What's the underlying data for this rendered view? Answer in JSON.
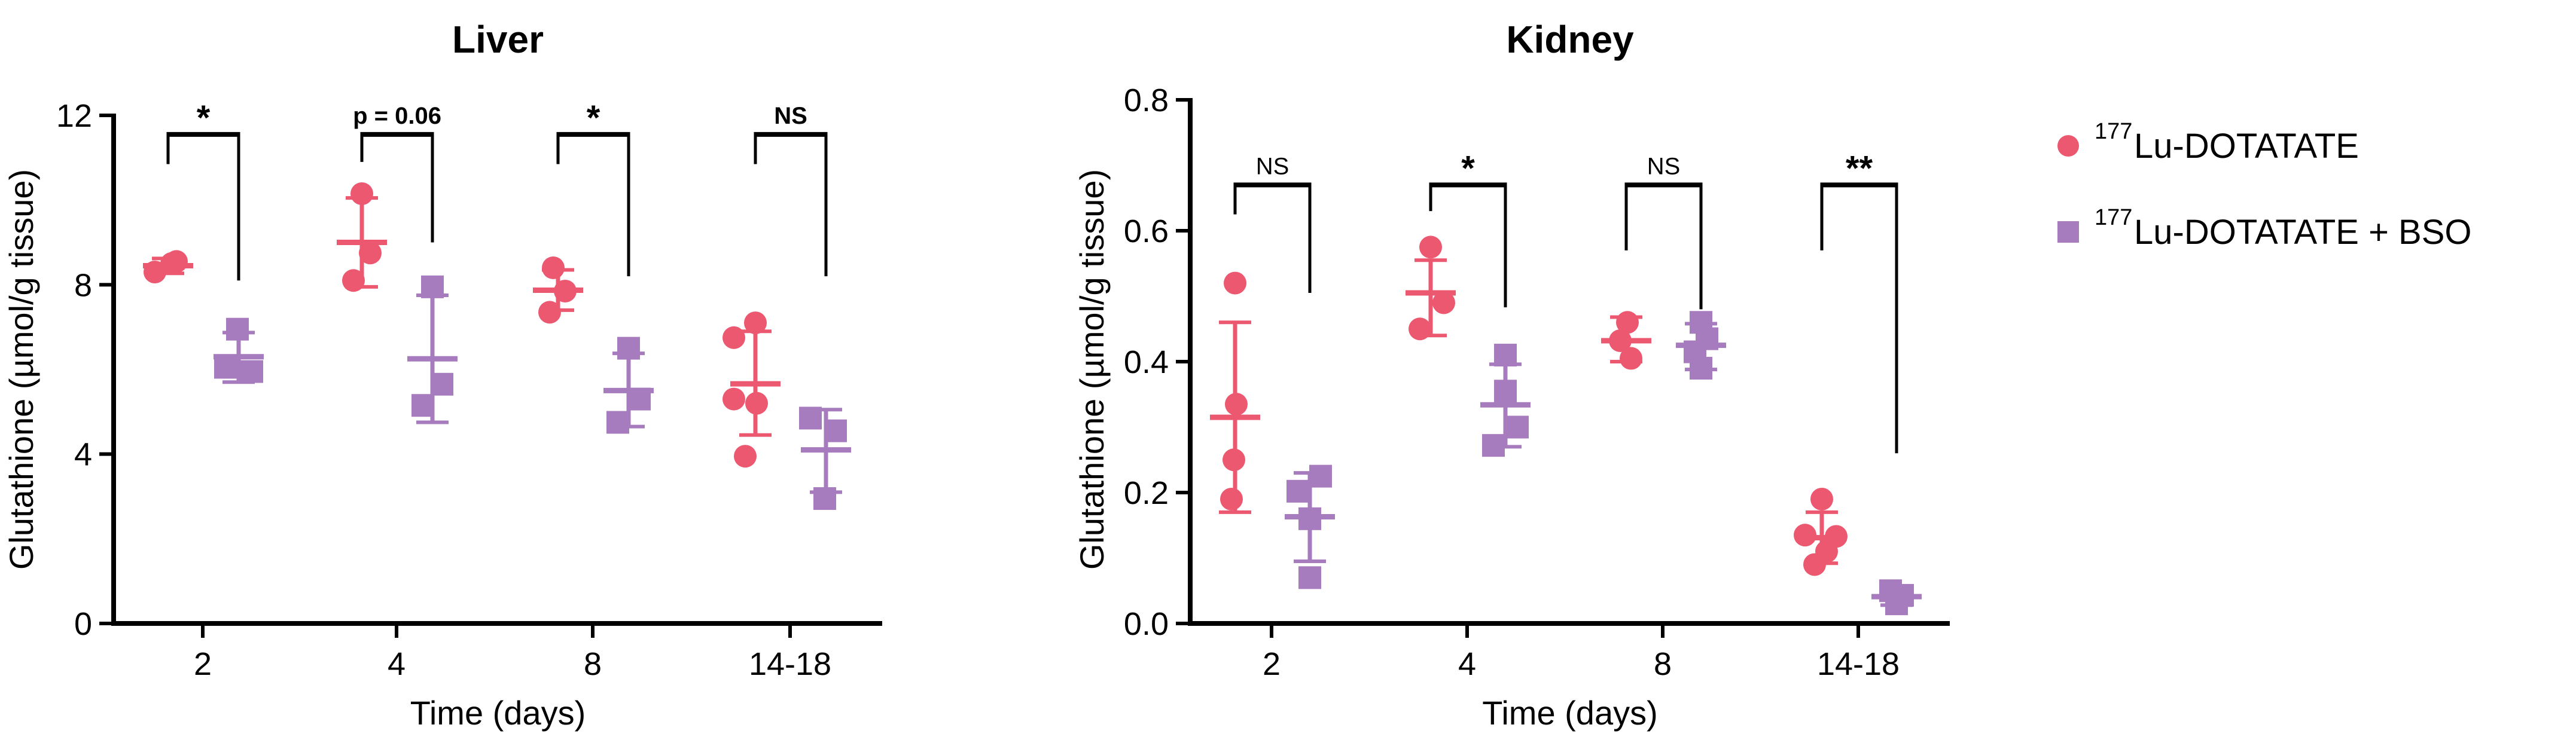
{
  "figure": {
    "background": "#ffffff",
    "text_color": "#000000"
  },
  "legend": {
    "position": "right",
    "items": [
      {
        "marker": "circle",
        "color": "#EC5870",
        "isotope_sup": "177",
        "label": "Lu-DOTATATE"
      },
      {
        "marker": "square",
        "color": "#A77CBE",
        "isotope_sup": "177",
        "label": "Lu-DOTATATE + BSO"
      }
    ]
  },
  "chart_data": [
    {
      "type": "scatter",
      "title": "Liver",
      "xlabel": "Time (days)",
      "ylabel": "Glutathione (µmol/g tissue)",
      "categories": [
        "2",
        "4",
        "8",
        "14-18"
      ],
      "ylim": [
        0,
        12
      ],
      "yticks": [
        0,
        4,
        8,
        12
      ],
      "ytick_labels": [
        "0",
        "4",
        "8",
        "12"
      ],
      "grid": false,
      "series": [
        {
          "name": "177Lu-DOTATATE",
          "marker": "circle",
          "color": "#EC5870",
          "groups": [
            {
              "points": [
                {
                  "dx": -22,
                  "v": 8.3
                },
                {
                  "dx": 6,
                  "v": 8.5
                },
                {
                  "dx": 14,
                  "v": 8.55
                }
              ],
              "mean": 8.45,
              "sd_hi": 8.62,
              "sd_lo": 8.27
            },
            {
              "points": [
                {
                  "dx": 0,
                  "v": 10.15
                },
                {
                  "dx": 14,
                  "v": 8.75
                },
                {
                  "dx": -14,
                  "v": 8.1
                }
              ],
              "mean": 9.0,
              "sd_hi": 10.05,
              "sd_lo": 7.95
            },
            {
              "points": [
                {
                  "dx": -8,
                  "v": 8.4
                },
                {
                  "dx": 12,
                  "v": 7.85
                },
                {
                  "dx": -14,
                  "v": 7.35
                }
              ],
              "mean": 7.87,
              "sd_hi": 8.35,
              "sd_lo": 7.4
            },
            {
              "points": [
                {
                  "dx": 0,
                  "v": 7.1
                },
                {
                  "dx": -36,
                  "v": 6.75
                },
                {
                  "dx": -36,
                  "v": 5.3
                },
                {
                  "dx": 2,
                  "v": 5.2
                },
                {
                  "dx": -17,
                  "v": 3.95
                }
              ],
              "mean": 5.66,
              "sd_hi": 6.9,
              "sd_lo": 4.45
            }
          ]
        },
        {
          "name": "177Lu-DOTATATE + BSO",
          "marker": "square",
          "color": "#A77CBE",
          "groups": [
            {
              "points": [
                {
                  "dx": -2,
                  "v": 6.95
                },
                {
                  "dx": -22,
                  "v": 6.05
                },
                {
                  "dx": 22,
                  "v": 5.95
                }
              ],
              "mean": 6.3,
              "sd_hi": 6.87,
              "sd_lo": 5.7
            },
            {
              "points": [
                {
                  "dx": 0,
                  "v": 7.95
                },
                {
                  "dx": 16,
                  "v": 5.65
                },
                {
                  "dx": -16,
                  "v": 5.15
                }
              ],
              "mean": 6.25,
              "sd_hi": 7.75,
              "sd_lo": 4.75
            },
            {
              "points": [
                {
                  "dx": 0,
                  "v": 6.5
                },
                {
                  "dx": 18,
                  "v": 5.3
                },
                {
                  "dx": -18,
                  "v": 4.75
                }
              ],
              "mean": 5.5,
              "sd_hi": 6.38,
              "sd_lo": 4.65
            },
            {
              "points": [
                {
                  "dx": -26,
                  "v": 4.85
                },
                {
                  "dx": 16,
                  "v": 4.55
                },
                {
                  "dx": -2,
                  "v": 2.95
                }
              ],
              "mean": 4.1,
              "sd_hi": 5.05,
              "sd_lo": 3.1
            }
          ]
        }
      ],
      "annotations": [
        {
          "category_index": 0,
          "label": "*",
          "bold": true,
          "bar": 11.55,
          "left_end": 10.85,
          "right_end": 8.1
        },
        {
          "category_index": 1,
          "label": "p = 0.06",
          "bold": true,
          "bar": 11.55,
          "left_end": 10.9,
          "right_end": 9.0
        },
        {
          "category_index": 2,
          "label": "*",
          "bold": true,
          "bar": 11.55,
          "left_end": 10.85,
          "right_end": 8.2
        },
        {
          "category_index": 3,
          "label": "NS",
          "bold": true,
          "bar": 11.55,
          "left_end": 10.85,
          "right_end": 8.2
        }
      ]
    },
    {
      "type": "scatter",
      "title": "Kidney",
      "xlabel": "Time (days)",
      "ylabel": "Glutathione (µmol/g tissue)",
      "categories": [
        "2",
        "4",
        "8",
        "14-18"
      ],
      "ylim": [
        0,
        0.8
      ],
      "yticks": [
        0,
        0.2,
        0.4,
        0.6,
        0.8
      ],
      "ytick_labels": [
        "0.0",
        "0.2",
        "0.4",
        "0.6",
        "0.8"
      ],
      "grid": false,
      "series": [
        {
          "name": "177Lu-DOTATATE",
          "marker": "circle",
          "color": "#EC5870",
          "groups": [
            {
              "points": [
                {
                  "dx": 0,
                  "v": 0.52
                },
                {
                  "dx": 2,
                  "v": 0.335
                },
                {
                  "dx": -2,
                  "v": 0.25
                },
                {
                  "dx": -6,
                  "v": 0.19
                }
              ],
              "mean": 0.315,
              "sd_hi": 0.46,
              "sd_lo": 0.17
            },
            {
              "points": [
                {
                  "dx": 0,
                  "v": 0.575
                },
                {
                  "dx": 22,
                  "v": 0.49
                },
                {
                  "dx": -18,
                  "v": 0.45
                }
              ],
              "mean": 0.505,
              "sd_hi": 0.555,
              "sd_lo": 0.44
            },
            {
              "points": [
                {
                  "dx": 2,
                  "v": 0.46
                },
                {
                  "dx": -10,
                  "v": 0.432
                },
                {
                  "dx": 8,
                  "v": 0.405
                }
              ],
              "mean": 0.432,
              "sd_hi": 0.468,
              "sd_lo": 0.4
            },
            {
              "points": [
                {
                  "dx": 0,
                  "v": 0.19
                },
                {
                  "dx": -28,
                  "v": 0.135
                },
                {
                  "dx": 24,
                  "v": 0.133
                },
                {
                  "dx": 8,
                  "v": 0.11
                },
                {
                  "dx": -12,
                  "v": 0.09
                }
              ],
              "mean": 0.131,
              "sd_hi": 0.17,
              "sd_lo": 0.092
            }
          ]
        },
        {
          "name": "177Lu-DOTATATE + BSO",
          "marker": "square",
          "color": "#A77CBE",
          "groups": [
            {
              "points": [
                {
                  "dx": 18,
                  "v": 0.225
                },
                {
                  "dx": -20,
                  "v": 0.202
                },
                {
                  "dx": 0,
                  "v": 0.16
                },
                {
                  "dx": 0,
                  "v": 0.07
                }
              ],
              "mean": 0.163,
              "sd_hi": 0.23,
              "sd_lo": 0.095
            },
            {
              "points": [
                {
                  "dx": 0,
                  "v": 0.41
                },
                {
                  "dx": 0,
                  "v": 0.355
                },
                {
                  "dx": 20,
                  "v": 0.3
                },
                {
                  "dx": -20,
                  "v": 0.272
                }
              ],
              "mean": 0.334,
              "sd_hi": 0.396,
              "sd_lo": 0.27
            },
            {
              "points": [
                {
                  "dx": 0,
                  "v": 0.46
                },
                {
                  "dx": 10,
                  "v": 0.435
                },
                {
                  "dx": -10,
                  "v": 0.415
                },
                {
                  "dx": 0,
                  "v": 0.39
                }
              ],
              "mean": 0.425,
              "sd_hi": 0.458,
              "sd_lo": 0.388
            },
            {
              "points": [
                {
                  "dx": -10,
                  "v": 0.05
                },
                {
                  "dx": 10,
                  "v": 0.043
                },
                {
                  "dx": 0,
                  "v": 0.03
                }
              ],
              "mean": 0.041,
              "sd_hi": 0.052,
              "sd_lo": 0.028
            }
          ]
        }
      ],
      "annotations": [
        {
          "category_index": 0,
          "label": "NS",
          "bold": false,
          "bar": 0.67,
          "left_end": 0.625,
          "right_end": 0.505
        },
        {
          "category_index": 1,
          "label": "*",
          "bold": true,
          "bar": 0.67,
          "left_end": 0.63,
          "right_end": 0.483
        },
        {
          "category_index": 2,
          "label": "NS",
          "bold": false,
          "bar": 0.67,
          "left_end": 0.57,
          "right_end": 0.48
        },
        {
          "category_index": 3,
          "label": "**",
          "bold": true,
          "bar": 0.67,
          "left_end": 0.57,
          "right_end": 0.26
        }
      ]
    }
  ]
}
